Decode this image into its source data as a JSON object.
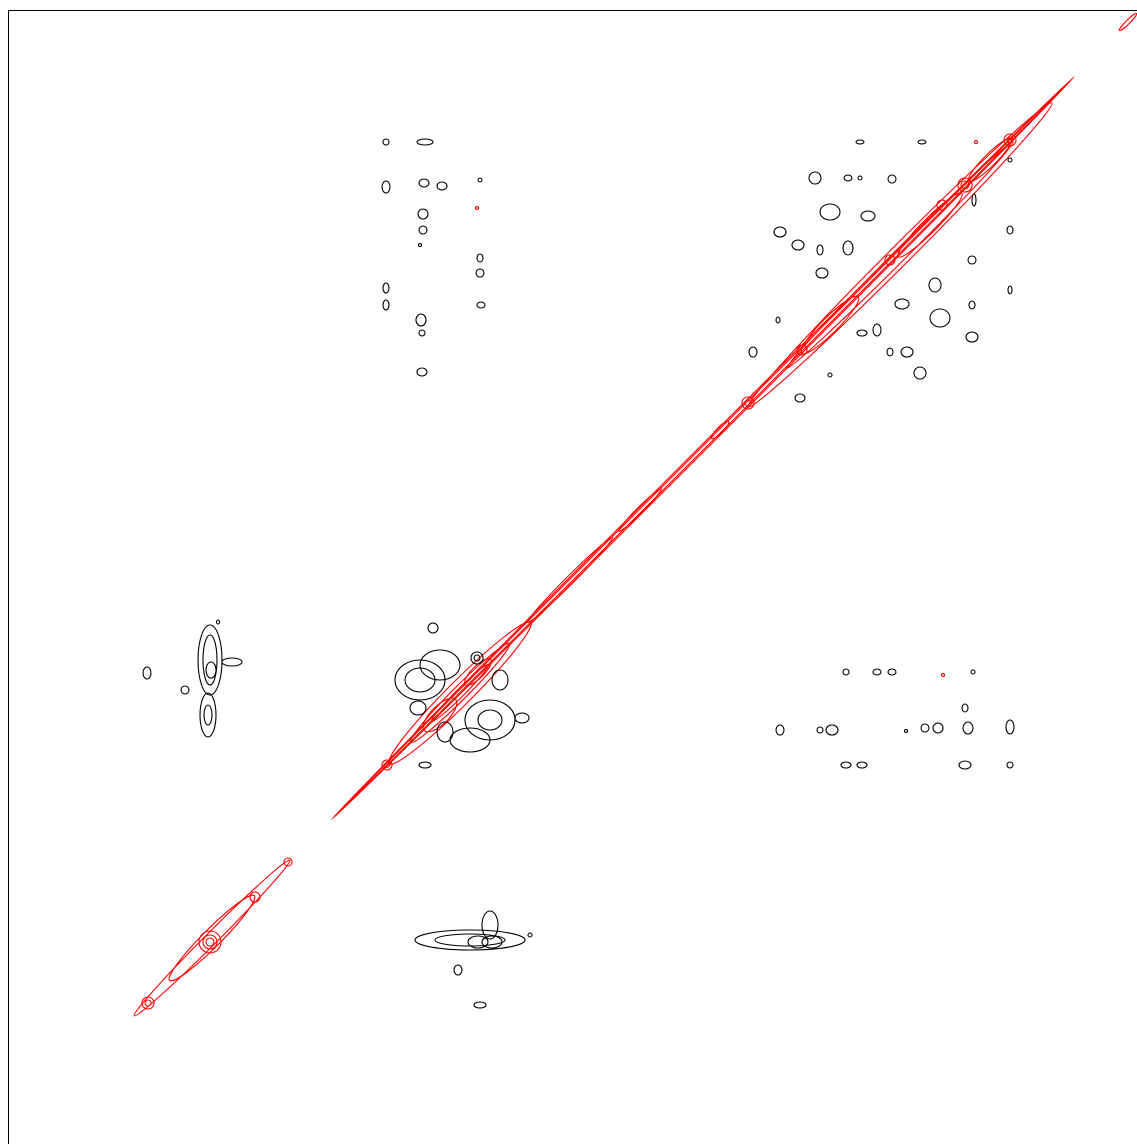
{
  "chart_data": {
    "type": "contour",
    "colors": [
      "#000000",
      "#ff0000"
    ]
  }
}
